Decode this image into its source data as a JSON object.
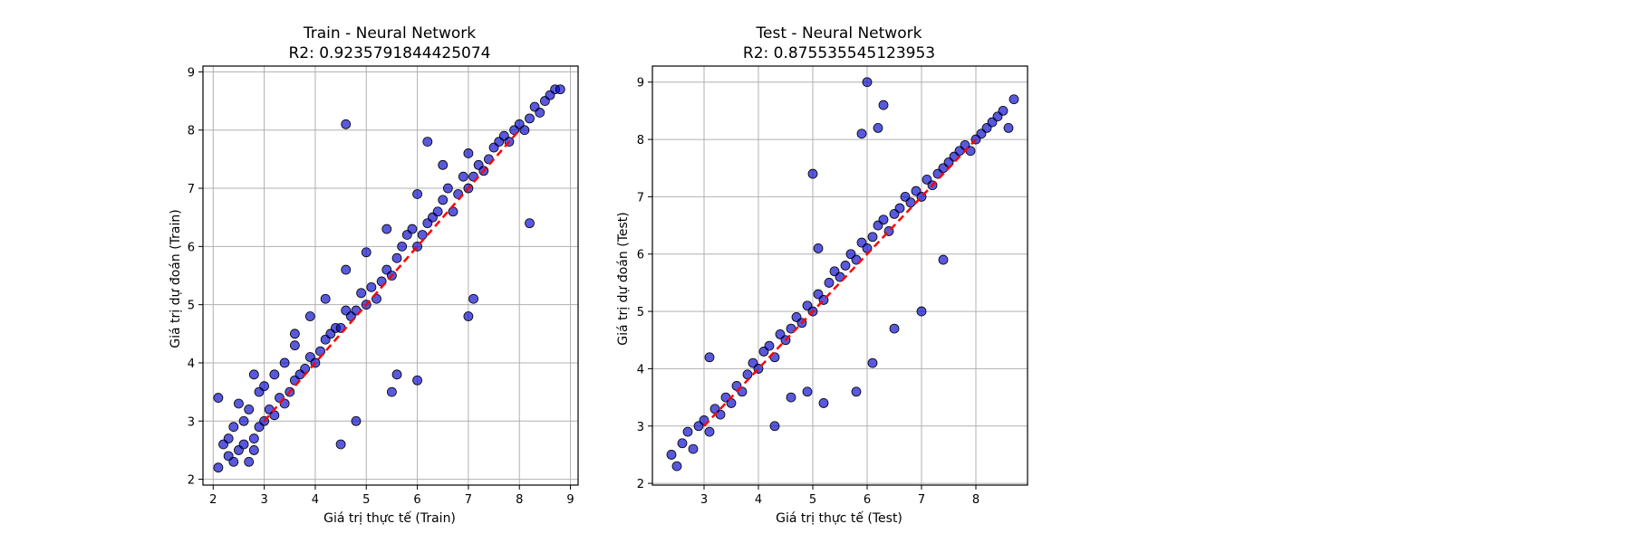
{
  "chart_data": [
    {
      "type": "scatter",
      "title": "Train - Neural Network",
      "subtitle": "R2: 0.9235791844425074",
      "xlabel": "Giá trị thực tế (Train)",
      "ylabel": "Giá trị dự đoán (Train)",
      "xlim": [
        1.8,
        9.15
      ],
      "ylim": [
        1.9,
        9.1
      ],
      "xticks": [
        2,
        3,
        4,
        5,
        6,
        7,
        8,
        9
      ],
      "yticks": [
        2,
        3,
        4,
        5,
        6,
        7,
        8,
        9
      ],
      "grid": true,
      "point_color": "#0000cc",
      "point_edge_color": "#000000",
      "reference_line": {
        "from": [
          3,
          3
        ],
        "to": [
          8,
          8
        ],
        "style": "dashed",
        "color": "#ff0000"
      },
      "series": [
        {
          "x": [
            2.1,
            2.1,
            2.2,
            2.3,
            2.3,
            2.4,
            2.4,
            2.5,
            2.5,
            2.6,
            2.6,
            2.7,
            2.7,
            2.8,
            2.8,
            2.9,
            2.9,
            3.0,
            3.0,
            3.1,
            3.2,
            3.2,
            3.3,
            3.4,
            3.4,
            3.5,
            3.6,
            3.6,
            3.7,
            3.8,
            3.9,
            3.9,
            4.0,
            4.1,
            4.2,
            4.2,
            4.3,
            4.4,
            4.5,
            4.6,
            4.6,
            4.7,
            4.8,
            4.9,
            5.0,
            5.0,
            5.1,
            5.2,
            5.3,
            5.4,
            5.4,
            5.5,
            5.6,
            5.7,
            5.8,
            5.9,
            6.0,
            6.0,
            6.1,
            6.2,
            6.3,
            6.4,
            6.5,
            6.6,
            6.7,
            6.8,
            6.9,
            7.0,
            7.0,
            7.1,
            7.2,
            7.3,
            7.4,
            7.5,
            7.6,
            7.7,
            7.8,
            7.9,
            8.0,
            8.1,
            8.2,
            8.3,
            8.4,
            8.5,
            8.6,
            8.7,
            8.8,
            4.6,
            4.5,
            4.8,
            6.0,
            7.0,
            7.1,
            8.2,
            6.2,
            6.5,
            5.5,
            5.6,
            2.8,
            3.6
          ],
          "y": [
            2.2,
            3.4,
            2.6,
            2.4,
            2.7,
            2.3,
            2.9,
            2.5,
            3.3,
            2.6,
            3.0,
            2.3,
            3.2,
            2.7,
            3.8,
            2.9,
            3.5,
            3.0,
            3.6,
            3.2,
            3.1,
            3.8,
            3.4,
            3.3,
            4.0,
            3.5,
            3.7,
            4.3,
            3.8,
            3.9,
            4.1,
            4.8,
            4.0,
            4.2,
            4.4,
            5.1,
            4.5,
            4.6,
            4.6,
            4.9,
            5.6,
            4.8,
            4.9,
            5.2,
            5.0,
            5.9,
            5.3,
            5.1,
            5.4,
            5.6,
            6.3,
            5.5,
            5.8,
            6.0,
            6.2,
            6.3,
            6.0,
            6.9,
            6.2,
            6.4,
            6.5,
            6.6,
            6.8,
            7.0,
            6.6,
            6.9,
            7.2,
            7.0,
            7.6,
            7.2,
            7.4,
            7.3,
            7.5,
            7.7,
            7.8,
            7.9,
            7.8,
            8.0,
            8.1,
            8.0,
            8.2,
            8.4,
            8.3,
            8.5,
            8.6,
            8.7,
            8.7,
            8.1,
            2.6,
            3.0,
            3.7,
            4.8,
            5.1,
            6.4,
            7.8,
            7.4,
            3.5,
            3.8,
            2.5,
            4.5
          ]
        }
      ]
    },
    {
      "type": "scatter",
      "title": "Test - Neural Network",
      "subtitle": "R2: 0.875535545123953",
      "xlabel": "Giá trị thực tế (Test)",
      "ylabel": "Giá trị dự đoán (Test)",
      "xlim": [
        2.05,
        8.95
      ],
      "ylim": [
        1.97,
        9.28
      ],
      "xticks": [
        3,
        4,
        5,
        6,
        7,
        8
      ],
      "yticks": [
        2,
        3,
        4,
        5,
        6,
        7,
        8,
        9
      ],
      "grid": true,
      "point_color": "#0000cc",
      "point_edge_color": "#000000",
      "reference_line": {
        "from": [
          3,
          3
        ],
        "to": [
          8,
          8
        ],
        "style": "dashed",
        "color": "#ff0000"
      },
      "series": [
        {
          "x": [
            2.4,
            2.5,
            2.6,
            2.7,
            2.8,
            2.9,
            3.0,
            3.1,
            3.2,
            3.3,
            3.4,
            3.5,
            3.6,
            3.7,
            3.8,
            3.9,
            4.0,
            4.1,
            4.2,
            4.3,
            4.4,
            4.5,
            4.6,
            4.7,
            4.8,
            4.9,
            5.0,
            5.1,
            5.2,
            5.3,
            5.4,
            5.5,
            5.6,
            5.7,
            5.8,
            5.9,
            6.0,
            6.1,
            6.2,
            6.3,
            6.4,
            6.5,
            6.6,
            6.7,
            6.8,
            6.9,
            7.0,
            7.1,
            7.2,
            7.3,
            7.4,
            7.5,
            7.6,
            7.7,
            7.8,
            7.9,
            8.0,
            8.1,
            8.2,
            8.3,
            8.4,
            8.5,
            8.6,
            8.7,
            6.0,
            6.3,
            6.2,
            5.9,
            6.1,
            5.0,
            4.3,
            4.9,
            5.1,
            7.0,
            7.4,
            6.5,
            5.2,
            4.6,
            5.8,
            3.1
          ],
          "y": [
            2.5,
            2.3,
            2.7,
            2.9,
            2.6,
            3.0,
            3.1,
            2.9,
            3.3,
            3.2,
            3.5,
            3.4,
            3.7,
            3.6,
            3.9,
            4.1,
            4.0,
            4.3,
            4.4,
            4.2,
            4.6,
            4.5,
            4.7,
            4.9,
            4.8,
            5.1,
            5.0,
            5.3,
            5.2,
            5.5,
            5.7,
            5.6,
            5.8,
            6.0,
            5.9,
            6.2,
            6.1,
            6.3,
            6.5,
            6.6,
            6.4,
            6.7,
            6.8,
            7.0,
            6.9,
            7.1,
            7.0,
            7.3,
            7.2,
            7.4,
            7.5,
            7.6,
            7.7,
            7.8,
            7.9,
            7.8,
            8.0,
            8.1,
            8.2,
            8.3,
            8.4,
            8.5,
            8.2,
            8.7,
            9.0,
            8.6,
            8.2,
            8.1,
            4.1,
            7.4,
            3.0,
            3.6,
            6.1,
            5.0,
            5.9,
            4.7,
            3.4,
            3.5,
            3.6,
            4.2
          ]
        }
      ]
    }
  ]
}
